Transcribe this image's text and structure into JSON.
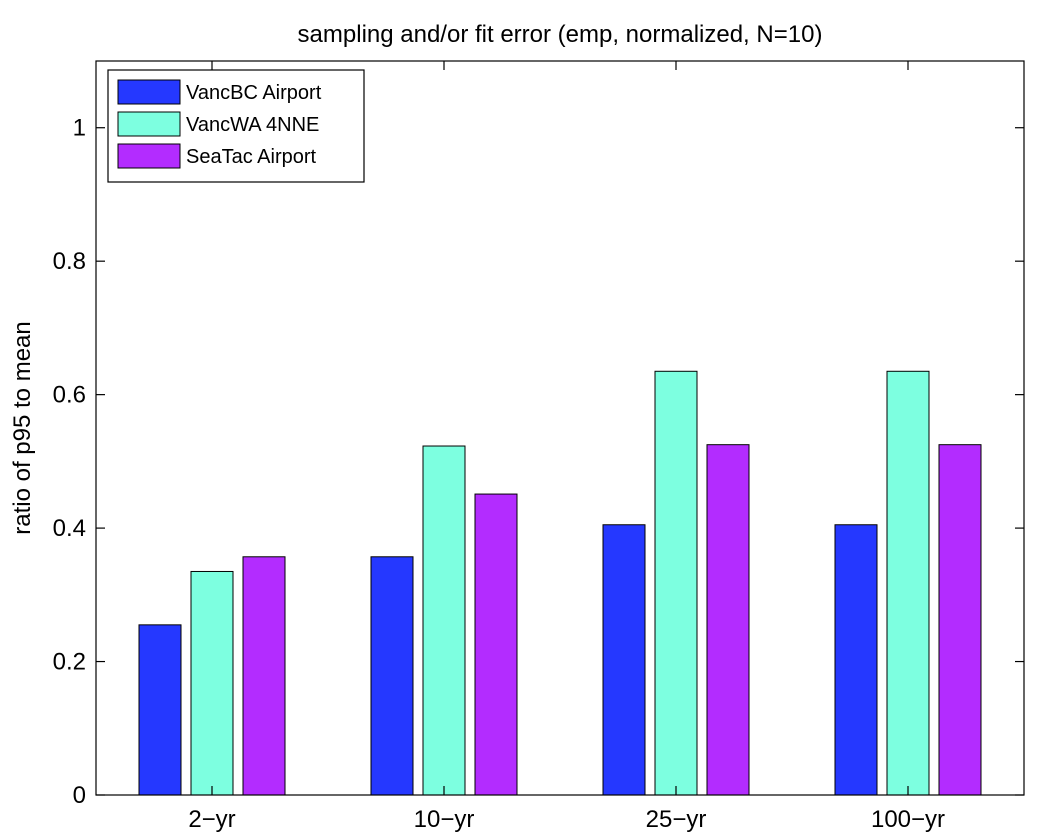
{
  "chart_data": {
    "type": "bar",
    "title": "sampling and/or fit error (emp, normalized, N=10)",
    "xlabel": "",
    "ylabel": "ratio of p95 to mean",
    "categories": [
      "2−yr",
      "10−yr",
      "25−yr",
      "100−yr"
    ],
    "ylim": [
      0,
      1.1
    ],
    "yticks": [
      0,
      0.2,
      0.4,
      0.6,
      0.8,
      1
    ],
    "ytick_labels": [
      "0",
      "0.2",
      "0.4",
      "0.6",
      "0.8",
      "1"
    ],
    "series": [
      {
        "name": "VancBC Airport",
        "color": "#2538ff",
        "values": [
          0.255,
          0.357,
          0.405,
          0.405
        ]
      },
      {
        "name": "VancWA 4NNE",
        "color": "#7dffe0",
        "values": [
          0.335,
          0.523,
          0.635,
          0.635
        ]
      },
      {
        "name": "SeaTac Airport",
        "color": "#b32cff",
        "values": [
          0.357,
          0.451,
          0.525,
          0.525
        ]
      }
    ],
    "legend_position": "top-left",
    "grid": false
  }
}
